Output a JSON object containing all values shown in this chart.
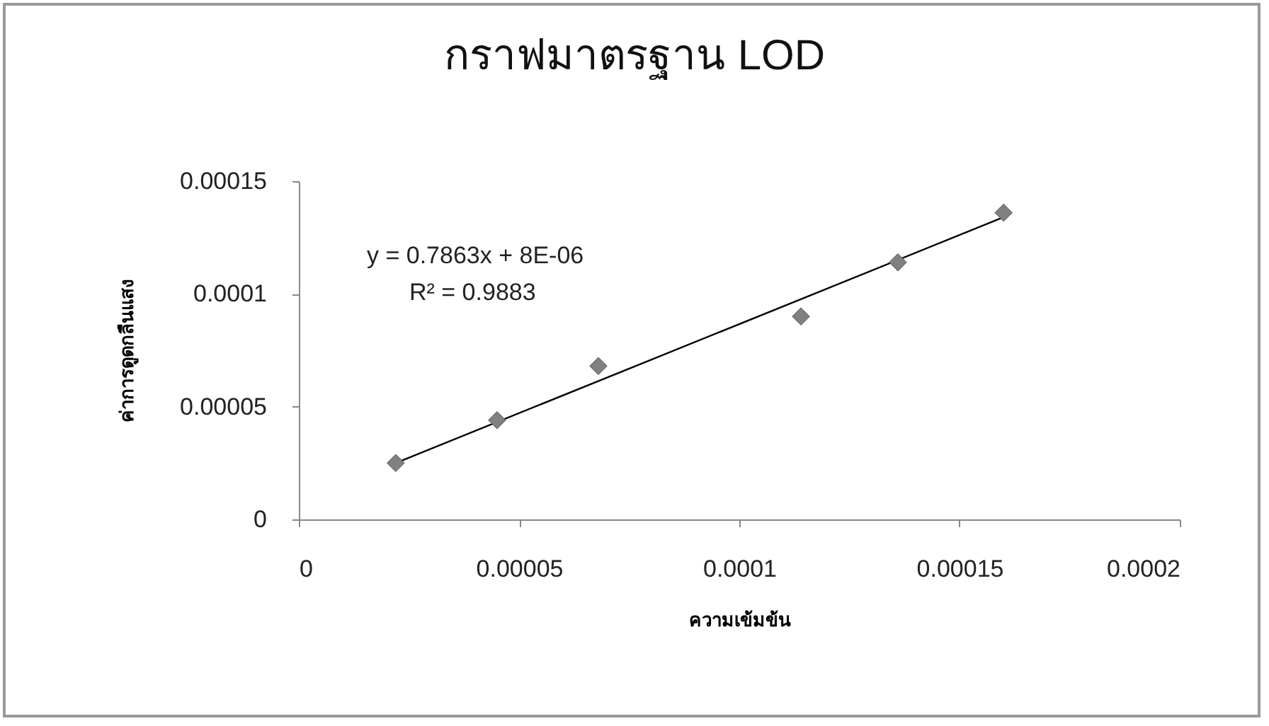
{
  "chart_data": {
    "type": "scatter",
    "title": "กราฟมาตรฐาน LOD",
    "xlabel": "ความเข้มข้น",
    "ylabel": "ค่าการดูดกลืนแสง",
    "xlim": [
      0,
      0.0002
    ],
    "xticks": [
      0,
      {
        "value": 5e-05,
        "label": "0.00005"
      },
      0.0001,
      0.00015,
      0.0002
    ],
    "ylim": [
      0,
      0.00015
    ],
    "yticks": [
      0,
      {
        "value": 5e-05,
        "label": "0.00005"
      },
      0.0001,
      0.00015
    ],
    "grid": false,
    "series": [
      {
        "color": "#808080",
        "marker": "diamond",
        "x": [
          2.2e-05,
          4.5e-05,
          6.8e-05,
          0.000114,
          0.000136,
          0.00016
        ],
        "values": [
          2.5e-05,
          4.4e-05,
          6.8e-05,
          9e-05,
          0.000114,
          0.000136
        ]
      },
      {
        "type": "line",
        "color": "#000000",
        "x": [
          2.2e-05,
          0.00016
        ],
        "values": [
          2.5e-05,
          0.000134
        ]
      }
    ],
    "annotations": [
      "y = 0.7863x + 8E-06",
      "R² = 0.9883"
    ]
  }
}
